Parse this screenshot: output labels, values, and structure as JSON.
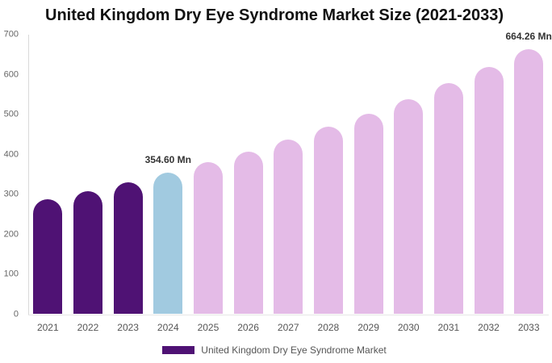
{
  "chart_data": {
    "type": "bar",
    "title": "United Kingdom Dry Eye Syndrome Market Size (2021-2033)",
    "categories": [
      "2021",
      "2022",
      "2023",
      "2024",
      "2025",
      "2026",
      "2027",
      "2028",
      "2029",
      "2030",
      "2031",
      "2032",
      "2033"
    ],
    "values": [
      287.65,
      308.43,
      330.71,
      354.6,
      380.21,
      407.68,
      437.13,
      468.71,
      502.57,
      538.87,
      577.8,
      619.53,
      664.26
    ],
    "segments": [
      "historical",
      "historical",
      "historical",
      "base_year",
      "forecast",
      "forecast",
      "forecast",
      "forecast",
      "forecast",
      "forecast",
      "forecast",
      "forecast",
      "forecast"
    ],
    "colors": {
      "historical": "#4f1274",
      "base_year": "#a1cae0",
      "forecast": "#e4bbe7"
    },
    "data_labels": {
      "2024": "354.60 Mn",
      "2033": "664.26 Mn"
    },
    "unit": "Mn",
    "xlabel": "",
    "ylabel": "",
    "ylim": [
      0,
      700
    ],
    "ytick_step": 100,
    "ytick_labels": [
      "0",
      "100",
      "200",
      "300",
      "400",
      "500",
      "600",
      "700"
    ],
    "grid": false,
    "legend": {
      "position": "bottom",
      "items": [
        {
          "label": "United Kingdom Dry Eye Syndrome Market",
          "color": "#4f1274"
        }
      ]
    }
  }
}
